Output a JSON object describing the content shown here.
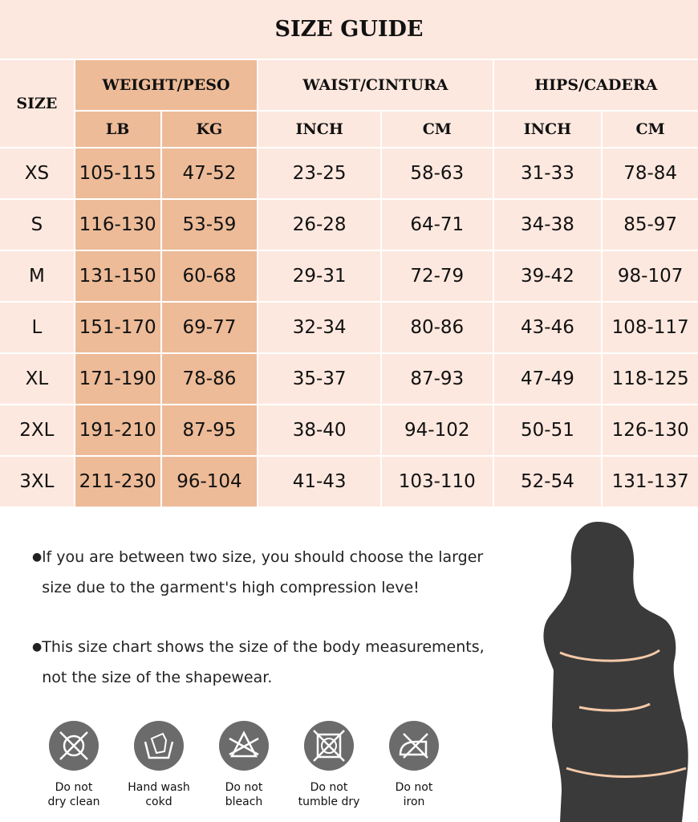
{
  "title": "SIZE GUIDE",
  "headers": {
    "size": "SIZE",
    "weight": "WEIGHT/PESO",
    "waist": "WAIST/CINTURA",
    "hips": "HIPS/CADERA",
    "lb": "LB",
    "kg": "KG",
    "waist_inch": "INCH",
    "waist_cm": "CM",
    "hips_inch": "INCH",
    "hips_cm": "CM"
  },
  "rows": [
    [
      "XS",
      "105-115",
      "47-52",
      "23-25",
      "58-63",
      "31-33",
      "78-84"
    ],
    [
      "S",
      "116-130",
      "53-59",
      "26-28",
      "64-71",
      "34-38",
      "85-97"
    ],
    [
      "M",
      "131-150",
      "60-68",
      "29-31",
      "72-79",
      "39-42",
      "98-107"
    ],
    [
      "L",
      "151-170",
      "69-77",
      "32-34",
      "80-86",
      "43-46",
      "108-117"
    ],
    [
      "XL",
      "171-190",
      "78-86",
      "35-37",
      "87-93",
      "47-49",
      "118-125"
    ],
    [
      "2XL",
      "191-210",
      "87-95",
      "38-40",
      "94-102",
      "50-51",
      "126-130"
    ],
    [
      "3XL",
      "211-230",
      "96-104",
      "41-43",
      "103-110",
      "52-54",
      "131-137"
    ]
  ],
  "notes": [
    "lf you are between two size, you should choose the larger size due to the garment's high compression leve!",
    "This size chart shows the size of the body measurements, not the size of the shapewear."
  ],
  "care": [
    {
      "icon": "no-dry-clean-icon",
      "line1": "Do not",
      "line2": "dry clean"
    },
    {
      "icon": "hand-wash-icon",
      "line1": "Hand wash",
      "line2": "cokd"
    },
    {
      "icon": "no-bleach-icon",
      "line1": "Do not",
      "line2": "bleach"
    },
    {
      "icon": "no-tumble-dry-icon",
      "line1": "Do not",
      "line2": "tumble dry"
    },
    {
      "icon": "no-iron-icon",
      "line1": "Do not",
      "line2": "iron"
    }
  ],
  "colors": {
    "background": "#fde8df",
    "weight_column": "#edbb98",
    "icon": "#6b6b6b",
    "silhouette": "#3a3a3a",
    "measure_line": "#f5c9a8"
  }
}
